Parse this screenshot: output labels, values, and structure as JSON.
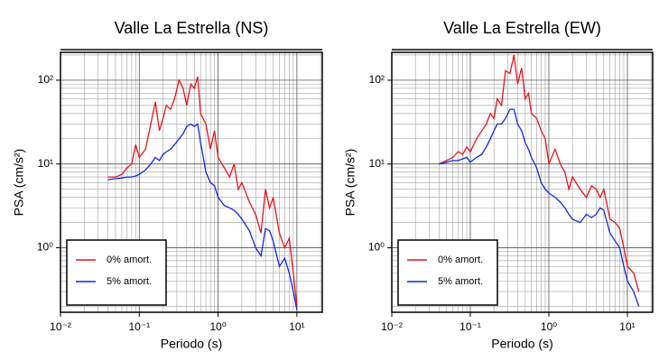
{
  "chart_data": [
    {
      "type": "line",
      "title": "Valle La Estrella (NS)",
      "xlabel": "Periodo (s)",
      "ylabel": "PSA (cm/s²)",
      "xscale": "log",
      "yscale": "log",
      "grid": true,
      "legend": "lower left",
      "xlim": [
        0.01,
        21
      ],
      "ylim": [
        0.17,
        215
      ],
      "xticks": [
        {
          "value": 0.01,
          "label": "10⁻²"
        },
        {
          "value": 0.1,
          "label": "10⁻¹"
        },
        {
          "value": 1,
          "label": "10⁰"
        },
        {
          "value": 10,
          "label": "10¹"
        }
      ],
      "yticks": [
        {
          "value": 1,
          "label": "10⁰"
        },
        {
          "value": 10,
          "label": "10¹"
        },
        {
          "value": 100,
          "label": "10²"
        }
      ],
      "xminorticks": [
        0.02,
        0.03,
        0.04,
        0.05,
        0.06,
        0.07,
        0.08,
        0.09,
        0.2,
        0.3,
        0.4,
        0.5,
        0.6,
        0.7,
        0.8,
        0.9,
        2,
        3,
        4,
        5,
        6,
        7,
        8,
        9,
        20
      ],
      "yminorticks": [
        0.2,
        0.3,
        0.4,
        0.5,
        0.6,
        0.7,
        0.8,
        0.9,
        2,
        3,
        4,
        5,
        6,
        7,
        8,
        9,
        20,
        30,
        40,
        50,
        60,
        70,
        80,
        90,
        200
      ],
      "x": [
        0.04,
        0.05,
        0.06,
        0.07,
        0.08,
        0.09,
        0.1,
        0.12,
        0.14,
        0.16,
        0.18,
        0.2,
        0.22,
        0.25,
        0.28,
        0.32,
        0.36,
        0.4,
        0.45,
        0.5,
        0.55,
        0.6,
        0.7,
        0.8,
        0.9,
        1.0,
        1.2,
        1.4,
        1.6,
        1.8,
        2.0,
        2.5,
        3.0,
        3.5,
        4.0,
        4.5,
        5.0,
        6.0,
        7.0,
        8.0,
        9.0,
        10
      ],
      "series": [
        {
          "name": "0% amort.",
          "color": "#e8141c",
          "values": [
            7,
            7,
            7.5,
            9,
            10,
            17,
            12,
            15,
            30,
            55,
            25,
            35,
            50,
            45,
            60,
            100,
            80,
            50,
            90,
            80,
            110,
            40,
            30,
            15,
            25,
            12,
            9,
            7,
            10,
            5,
            6,
            3.5,
            2.5,
            1.5,
            5,
            3,
            4,
            1.5,
            1.0,
            1.3,
            0.5,
            0.2
          ]
        },
        {
          "name": "5% amort.",
          "color": "#1428e0",
          "values": [
            6.5,
            6.7,
            6.8,
            7,
            7,
            7.2,
            7.5,
            8.5,
            10,
            12,
            11,
            13,
            14,
            15,
            17,
            20,
            23,
            28,
            30,
            28,
            30,
            18,
            8,
            6,
            5.5,
            4,
            3.2,
            3,
            2.8,
            2.5,
            2.2,
            1.6,
            1,
            0.8,
            1.7,
            1.6,
            1.2,
            0.6,
            0.75,
            0.5,
            0.3,
            0.18
          ]
        }
      ]
    },
    {
      "type": "line",
      "title": "Valle La Estrella (EW)",
      "xlabel": "Periodo (s)",
      "ylabel": "PSA (cm/s²)",
      "xscale": "log",
      "yscale": "log",
      "grid": true,
      "legend": "lower left",
      "xlim": [
        0.01,
        21
      ],
      "ylim": [
        0.17,
        215
      ],
      "xticks": [
        {
          "value": 0.01,
          "label": "10⁻²"
        },
        {
          "value": 0.1,
          "label": "10⁻¹"
        },
        {
          "value": 1,
          "label": "10⁰"
        },
        {
          "value": 10,
          "label": "10¹"
        }
      ],
      "yticks": [
        {
          "value": 1,
          "label": "10⁰"
        },
        {
          "value": 10,
          "label": "10¹"
        },
        {
          "value": 100,
          "label": "10²"
        }
      ],
      "xminorticks": [
        0.02,
        0.03,
        0.04,
        0.05,
        0.06,
        0.07,
        0.08,
        0.09,
        0.2,
        0.3,
        0.4,
        0.5,
        0.6,
        0.7,
        0.8,
        0.9,
        2,
        3,
        4,
        5,
        6,
        7,
        8,
        9,
        20
      ],
      "yminorticks": [
        0.2,
        0.3,
        0.4,
        0.5,
        0.6,
        0.7,
        0.8,
        0.9,
        2,
        3,
        4,
        5,
        6,
        7,
        8,
        9,
        20,
        30,
        40,
        50,
        60,
        70,
        80,
        90,
        200
      ],
      "x": [
        0.04,
        0.05,
        0.06,
        0.07,
        0.08,
        0.09,
        0.1,
        0.12,
        0.14,
        0.16,
        0.18,
        0.2,
        0.22,
        0.25,
        0.28,
        0.32,
        0.36,
        0.4,
        0.45,
        0.5,
        0.55,
        0.6,
        0.7,
        0.8,
        0.9,
        1.0,
        1.2,
        1.4,
        1.6,
        1.8,
        2.0,
        2.5,
        3.0,
        3.5,
        4.0,
        4.5,
        5.0,
        6.0,
        7.0,
        8.0,
        9.0,
        10,
        12,
        14
      ],
      "series": [
        {
          "name": "0% amort.",
          "color": "#e8141c",
          "values": [
            10,
            11,
            12,
            14,
            13,
            16,
            14,
            20,
            25,
            30,
            40,
            35,
            60,
            50,
            130,
            120,
            200,
            90,
            140,
            60,
            70,
            40,
            35,
            25,
            20,
            10,
            15,
            10,
            8,
            5,
            7,
            5,
            4,
            5.5,
            5,
            4,
            5,
            2.2,
            2.0,
            1.7,
            1.0,
            0.6,
            0.5,
            0.3
          ]
        },
        {
          "name": "5% amort.",
          "color": "#1428e0",
          "values": [
            10,
            10.5,
            11,
            11,
            11.5,
            12,
            10.5,
            12,
            13,
            16,
            20,
            25,
            30,
            30,
            35,
            45,
            45,
            30,
            25,
            18,
            15,
            12,
            9,
            6,
            5,
            4.5,
            4,
            3.5,
            3,
            2.5,
            2.2,
            2,
            2.5,
            2.3,
            2.5,
            3,
            2.8,
            1.5,
            1.2,
            1.0,
            0.6,
            0.4,
            0.3,
            0.2
          ]
        }
      ]
    }
  ]
}
